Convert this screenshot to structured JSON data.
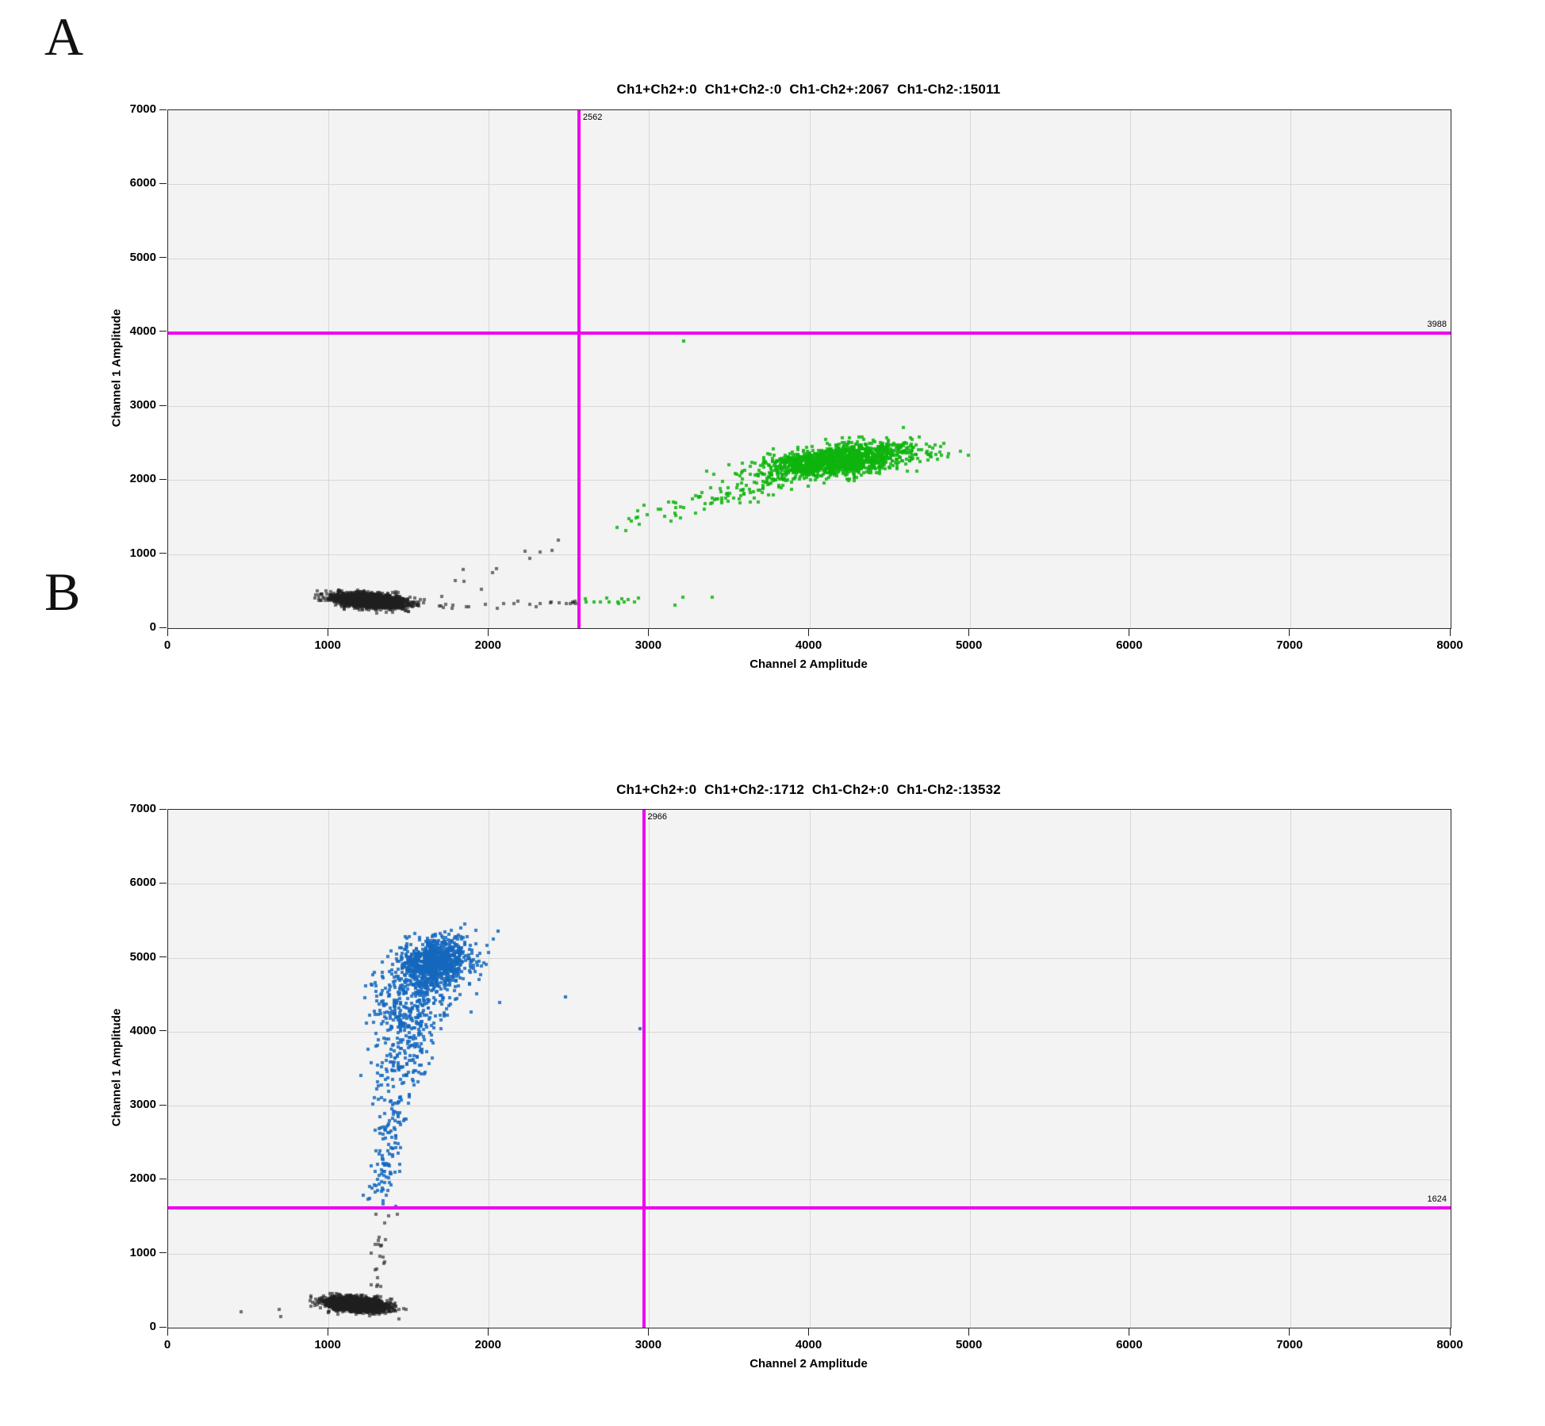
{
  "panels": [
    {
      "letter": "A",
      "title": "Ch1+Ch2+:0  Ch1+Ch2-:0  Ch1-Ch2+:2067  Ch1-Ch2-:15011",
      "xlabel": "Channel 2 Amplitude",
      "ylabel": "Channel 1 Amplitude",
      "threshold_x_label": "2562",
      "threshold_y_label": "3988"
    },
    {
      "letter": "B",
      "title": "Ch1+Ch2+:0  Ch1+Ch2-:1712  Ch1-Ch2+:0  Ch1-Ch2-:13532",
      "xlabel": "Channel 2 Amplitude",
      "ylabel": "Channel 1 Amplitude",
      "threshold_x_label": "2966",
      "threshold_y_label": "1624"
    }
  ],
  "chart_data": [
    {
      "type": "scatter",
      "title": "Ch1+Ch2+:0  Ch1+Ch2-:0  Ch1-Ch2+:2067  Ch1-Ch2-:15011",
      "xlabel": "Channel 2 Amplitude",
      "ylabel": "Channel 1 Amplitude",
      "xlim": [
        0,
        8000
      ],
      "ylim": [
        0,
        7000
      ],
      "xticks": [
        0,
        1000,
        2000,
        3000,
        4000,
        5000,
        6000,
        7000,
        8000
      ],
      "yticks": [
        0,
        1000,
        2000,
        3000,
        4000,
        5000,
        6000,
        7000
      ],
      "grid": true,
      "plot_bg": "#f3f3f3",
      "grid_color": "#d7d7d7",
      "seed": 12345,
      "thresholds": {
        "color": "#ee00ee",
        "x": {
          "value": 2562,
          "label": "2562"
        },
        "y": {
          "value": 3988,
          "label": "3988"
        }
      },
      "quadrant_counts": {
        "Ch1+Ch2+": 0,
        "Ch1+Ch2-": 0,
        "Ch1-Ch2+": 2067,
        "Ch1-Ch2-": 15011
      },
      "clusters": [
        {
          "name": "double-negative-droplets",
          "shape": "gauss",
          "color": "#1f1f1f",
          "alpha": 0.62,
          "n": 2600,
          "cx": 1255,
          "cy": 375,
          "sx": 105,
          "sy": 46,
          "corr": -0.35
        },
        {
          "name": "gray-scatter-band",
          "shape": "band",
          "color": "#1f1f1f",
          "alpha": 0.62,
          "n": 30,
          "x0": 1450,
          "x1": 2550,
          "y": 310,
          "sy": 45
        },
        {
          "name": "gray-stragglers",
          "shape": "points",
          "color": "#1f1f1f",
          "alpha": 0.62,
          "pts": [
            [
              1600,
              385
            ],
            [
              1705,
              430
            ],
            [
              1790,
              640
            ],
            [
              1845,
              632
            ],
            [
              1838,
              788
            ],
            [
              2022,
              752
            ],
            [
              2046,
              800
            ],
            [
              1952,
              520
            ],
            [
              2225,
              1035
            ],
            [
              2256,
              948
            ],
            [
              2322,
              1030
            ],
            [
              2396,
              1052
            ],
            [
              2432,
              1188
            ],
            [
              2508,
              330
            ],
            [
              2540,
              365
            ]
          ]
        },
        {
          "name": "ch2-positive-droplets",
          "shape": "gauss",
          "color": "#0db40d",
          "alpha": 0.85,
          "n": 1400,
          "cx": 4180,
          "cy": 2265,
          "sx": 235,
          "sy": 115,
          "corr": 0.5
        },
        {
          "name": "green-rain-diagonal",
          "shape": "trail",
          "color": "#0db40d",
          "alpha": 0.85,
          "n": 95,
          "p0": [
            2640,
            1270
          ],
          "p1": [
            3860,
            2060
          ],
          "sx": 70,
          "sy": 95,
          "bias": 0.5
        },
        {
          "name": "green-low-band",
          "shape": "band",
          "color": "#0db40d",
          "alpha": 0.85,
          "n": 16,
          "x0": 2575,
          "x1": 3400,
          "y": 372,
          "sy": 28
        },
        {
          "name": "green-outlier",
          "shape": "points",
          "color": "#0db40d",
          "alpha": 0.9,
          "pts": [
            [
              3218,
              3880
            ]
          ]
        }
      ]
    },
    {
      "type": "scatter",
      "title": "Ch1+Ch2+:0  Ch1+Ch2-:1712  Ch1-Ch2+:0  Ch1-Ch2-:13532",
      "xlabel": "Channel 2 Amplitude",
      "ylabel": "Channel 1 Amplitude",
      "xlim": [
        0,
        8000
      ],
      "ylim": [
        0,
        7000
      ],
      "xticks": [
        0,
        1000,
        2000,
        3000,
        4000,
        5000,
        6000,
        7000,
        8000
      ],
      "yticks": [
        0,
        1000,
        2000,
        3000,
        4000,
        5000,
        6000,
        7000
      ],
      "grid": true,
      "plot_bg": "#f3f3f3",
      "grid_color": "#d7d7d7",
      "seed": 67890,
      "thresholds": {
        "color": "#ee00ee",
        "x": {
          "value": 2966,
          "label": "2966"
        },
        "y": {
          "value": 1624,
          "label": "1624"
        }
      },
      "quadrant_counts": {
        "Ch1+Ch2+": 0,
        "Ch1+Ch2-": 1712,
        "Ch1-Ch2+": 0,
        "Ch1-Ch2-": 13532
      },
      "clusters": [
        {
          "name": "ch1-positive-core",
          "shape": "gauss",
          "color": "#1467bd",
          "alpha": 0.85,
          "n": 820,
          "cx": 1655,
          "cy": 4930,
          "sx": 112,
          "sy": 165,
          "corr": 0.25
        },
        {
          "name": "ch1-positive-spread",
          "shape": "gauss",
          "color": "#1467bd",
          "alpha": 0.85,
          "n": 280,
          "cx": 1565,
          "cy": 4550,
          "sx": 150,
          "sy": 280,
          "corr": 0.35,
          "ymax": 5450
        },
        {
          "name": "blue-rain-upper",
          "shape": "trail",
          "color": "#1467bd",
          "alpha": 0.85,
          "n": 240,
          "p0": [
            1390,
            2800
          ],
          "p1": [
            1535,
            4350
          ],
          "sx": 85,
          "sy": 150,
          "bias": 0.75
        },
        {
          "name": "blue-rain-lower",
          "shape": "trail",
          "color": "#1467bd",
          "alpha": 0.85,
          "n": 95,
          "p0": [
            1312,
            1660
          ],
          "p1": [
            1390,
            2800
          ],
          "sx": 45,
          "sy": 100,
          "bias": 0.85,
          "ymin": 1630
        },
        {
          "name": "blue-outliers",
          "shape": "points",
          "color": "#1467bd",
          "alpha": 0.9,
          "pts": [
            [
              2480,
              4470
            ],
            [
              2942,
              4040
            ],
            [
              2060,
              5360
            ]
          ]
        },
        {
          "name": "gray-rain",
          "shape": "trail",
          "color": "#1f1f1f",
          "alpha": 0.62,
          "n": 24,
          "p0": [
            1300,
            560
          ],
          "p1": [
            1348,
            1580
          ],
          "sx": 34,
          "sy": 70,
          "bias": 1,
          "ymax": 1610
        },
        {
          "name": "double-negative-droplets",
          "shape": "gauss",
          "color": "#1f1f1f",
          "alpha": 0.62,
          "n": 2300,
          "cx": 1172,
          "cy": 315,
          "sx": 92,
          "sy": 46,
          "corr": -0.3
        },
        {
          "name": "gray-stragglers",
          "shape": "points",
          "color": "#1f1f1f",
          "alpha": 0.62,
          "pts": [
            [
              455,
              215
            ],
            [
              695,
              250
            ],
            [
              705,
              152
            ],
            [
              1440,
              118
            ]
          ]
        }
      ]
    }
  ]
}
